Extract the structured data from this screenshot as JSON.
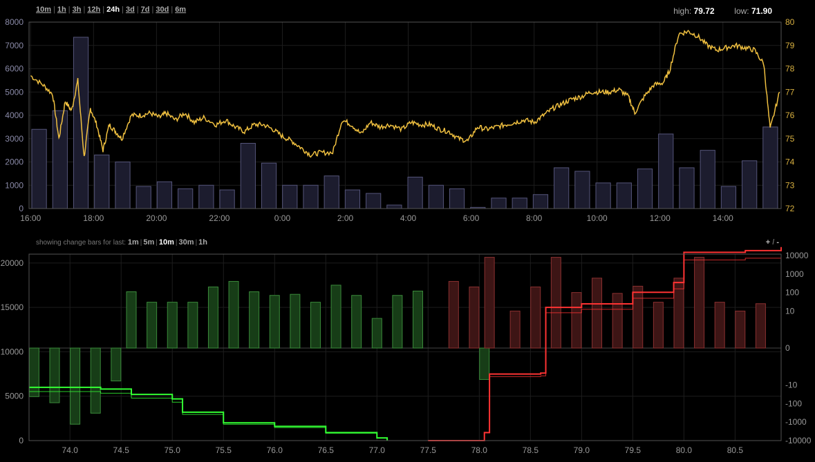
{
  "timeframes": [
    "10m",
    "1h",
    "3h",
    "12h",
    "24h",
    "3d",
    "7d",
    "30d",
    "6m"
  ],
  "timeframe_active": "24h",
  "stats": {
    "high_label": "high:",
    "high": "79.72",
    "low_label": "low:",
    "low": "71.90"
  },
  "changebars": {
    "label": "showing change bars for last:",
    "options": [
      "1m",
      "5m",
      "10m",
      "30m",
      "1h"
    ],
    "active": "10m"
  },
  "zoom": {
    "plus": "+",
    "sep": "/",
    "minus": "-"
  },
  "colors": {
    "price": "#f0c040",
    "volume_fill": "#1c1c2e",
    "volume_stroke": "#55557a",
    "bid_bar": "#173d17",
    "bid_bar_stroke": "#3a8a3a",
    "ask_bar": "#3d1515",
    "ask_bar_stroke": "#8a3030",
    "bid_line": "#33ff33",
    "ask_line": "#ff3333",
    "grid": "#1d1d1d",
    "frame": "#555"
  },
  "chart_data": [
    {
      "type": "bar",
      "name": "price-volume",
      "x_ticks": [
        "16:00",
        "18:00",
        "20:00",
        "22:00",
        "0:00",
        "2:00",
        "4:00",
        "6:00",
        "8:00",
        "10:00",
        "12:00",
        "14:00"
      ],
      "x_tick_hours": [
        16,
        18,
        20,
        22,
        24,
        26,
        28,
        30,
        32,
        34,
        36,
        38
      ],
      "x_range_hours": [
        15.95,
        39.85
      ],
      "y_left_ticks": [
        "0",
        "1000",
        "2000",
        "3000",
        "4000",
        "5000",
        "6000",
        "7000",
        "8000"
      ],
      "y_left_range": [
        0,
        8000
      ],
      "y_right_ticks": [
        "72",
        "73",
        "74",
        "75",
        "76",
        "77",
        "78",
        "79",
        "80"
      ],
      "y_right_range": [
        72,
        80
      ],
      "volume": [
        3400,
        4200,
        7350,
        2300,
        2000,
        950,
        1150,
        850,
        1000,
        800,
        2800,
        1950,
        1000,
        1000,
        1400,
        800,
        650,
        150,
        1350,
        1000,
        850,
        50,
        450,
        450,
        600,
        1750,
        1600,
        1100,
        1100,
        1700,
        3200,
        1750,
        2500,
        950,
        2050,
        3500
      ],
      "price": [
        [
          16.0,
          77.7
        ],
        [
          16.4,
          77.3
        ],
        [
          16.7,
          76.9
        ],
        [
          16.9,
          75.0
        ],
        [
          17.1,
          76.6
        ],
        [
          17.3,
          76.2
        ],
        [
          17.5,
          77.5
        ],
        [
          17.7,
          74.2
        ],
        [
          17.9,
          76.3
        ],
        [
          18.1,
          75.6
        ],
        [
          18.3,
          74.5
        ],
        [
          18.5,
          75.6
        ],
        [
          18.7,
          75.3
        ],
        [
          18.9,
          75.0
        ],
        [
          19.2,
          76.0
        ],
        [
          19.5,
          76.0
        ],
        [
          19.8,
          76.1
        ],
        [
          20.1,
          75.9
        ],
        [
          20.3,
          76.1
        ],
        [
          20.6,
          75.8
        ],
        [
          20.9,
          76.1
        ],
        [
          21.2,
          75.7
        ],
        [
          21.5,
          75.9
        ],
        [
          21.9,
          75.6
        ],
        [
          22.2,
          75.8
        ],
        [
          22.5,
          75.5
        ],
        [
          22.8,
          75.3
        ],
        [
          23.1,
          75.6
        ],
        [
          23.4,
          75.6
        ],
        [
          23.7,
          75.4
        ],
        [
          24.0,
          75.1
        ],
        [
          24.3,
          74.9
        ],
        [
          24.6,
          74.6
        ],
        [
          24.9,
          74.3
        ],
        [
          25.2,
          74.4
        ],
        [
          25.6,
          74.4
        ],
        [
          25.9,
          75.8
        ],
        [
          26.2,
          75.6
        ],
        [
          26.5,
          75.2
        ],
        [
          26.8,
          75.7
        ],
        [
          27.1,
          75.5
        ],
        [
          27.4,
          75.6
        ],
        [
          27.8,
          75.4
        ],
        [
          28.1,
          75.7
        ],
        [
          28.4,
          75.6
        ],
        [
          28.7,
          75.6
        ],
        [
          29.0,
          75.4
        ],
        [
          29.3,
          75.3
        ],
        [
          29.6,
          75.0
        ],
        [
          29.9,
          74.9
        ],
        [
          30.2,
          75.5
        ],
        [
          30.5,
          75.4
        ],
        [
          30.8,
          75.5
        ],
        [
          31.1,
          75.6
        ],
        [
          31.4,
          75.7
        ],
        [
          31.7,
          75.8
        ],
        [
          32.0,
          75.7
        ],
        [
          32.3,
          76.0
        ],
        [
          32.6,
          76.3
        ],
        [
          32.9,
          76.5
        ],
        [
          33.2,
          76.7
        ],
        [
          33.5,
          76.8
        ],
        [
          33.8,
          77.0
        ],
        [
          34.1,
          77.0
        ],
        [
          34.4,
          77.0
        ],
        [
          34.7,
          77.1
        ],
        [
          35.0,
          76.8
        ],
        [
          35.2,
          76.1
        ],
        [
          35.5,
          76.8
        ],
        [
          35.8,
          77.3
        ],
        [
          36.1,
          77.4
        ],
        [
          36.3,
          77.9
        ],
        [
          36.6,
          79.5
        ],
        [
          36.9,
          79.6
        ],
        [
          37.2,
          79.4
        ],
        [
          37.5,
          79.0
        ],
        [
          37.8,
          78.8
        ],
        [
          38.1,
          78.9
        ],
        [
          38.4,
          79.0
        ],
        [
          38.7,
          78.9
        ],
        [
          39.0,
          78.8
        ],
        [
          39.3,
          78.2
        ],
        [
          39.5,
          75.4
        ],
        [
          39.8,
          77.0
        ]
      ]
    },
    {
      "type": "bar",
      "name": "depth-change",
      "x_ticks": [
        "74.0",
        "74.5",
        "75.0",
        "75.5",
        "76.0",
        "76.5",
        "77.0",
        "77.5",
        "78.0",
        "78.5",
        "79.0",
        "79.5",
        "80.0",
        "80.5"
      ],
      "x_tick_values": [
        74.0,
        74.5,
        75.0,
        75.5,
        76.0,
        76.5,
        77.0,
        77.5,
        78.0,
        78.5,
        79.0,
        79.5,
        80.0,
        80.5
      ],
      "x_range": [
        73.6,
        80.95
      ],
      "y_left_ticks": [
        "0",
        "5000",
        "10000",
        "15000",
        "20000"
      ],
      "y_left_range": [
        0,
        21000
      ],
      "y_right_ticks": [
        "10000",
        "1000",
        "100",
        "10",
        "0",
        "-10",
        "-100",
        "-1000",
        "-10000"
      ],
      "change_axis_scale": "symlog",
      "change_bars": [
        [
          73.65,
          -42
        ],
        [
          73.85,
          -90
        ],
        [
          74.05,
          -1300
        ],
        [
          74.25,
          -330
        ],
        [
          74.45,
          -6
        ],
        [
          74.6,
          110
        ],
        [
          74.8,
          30
        ],
        [
          75.0,
          30
        ],
        [
          75.2,
          30
        ],
        [
          75.4,
          200
        ],
        [
          75.6,
          400
        ],
        [
          75.8,
          110
        ],
        [
          76.0,
          70
        ],
        [
          76.2,
          80
        ],
        [
          76.4,
          30
        ],
        [
          76.6,
          250
        ],
        [
          76.8,
          70
        ],
        [
          77.0,
          4
        ],
        [
          77.2,
          70
        ],
        [
          77.4,
          120
        ],
        [
          78.05,
          -5
        ],
        [
          77.75,
          400
        ],
        [
          77.95,
          200
        ],
        [
          78.1,
          8000
        ],
        [
          78.35,
          10
        ],
        [
          78.55,
          200
        ],
        [
          78.75,
          8000
        ],
        [
          78.95,
          100
        ],
        [
          79.15,
          600
        ],
        [
          79.35,
          90
        ],
        [
          79.55,
          220
        ],
        [
          79.75,
          30
        ],
        [
          79.95,
          600
        ],
        [
          80.15,
          8000
        ],
        [
          80.35,
          30
        ],
        [
          80.55,
          10
        ],
        [
          80.75,
          25
        ]
      ],
      "bid_depth": [
        [
          73.6,
          6000
        ],
        [
          74.3,
          5800
        ],
        [
          74.6,
          5200
        ],
        [
          75.0,
          4700
        ],
        [
          75.1,
          3200
        ],
        [
          75.5,
          2000
        ],
        [
          76.0,
          1600
        ],
        [
          76.5,
          900
        ],
        [
          77.0,
          300
        ],
        [
          77.1,
          0
        ]
      ],
      "ask_depth": [
        [
          77.5,
          0
        ],
        [
          78.05,
          900
        ],
        [
          78.1,
          7500
        ],
        [
          78.6,
          7600
        ],
        [
          78.65,
          15000
        ],
        [
          79.0,
          15400
        ],
        [
          79.5,
          16700
        ],
        [
          79.9,
          17800
        ],
        [
          80.0,
          21200
        ],
        [
          80.6,
          21400
        ],
        [
          80.95,
          21800
        ]
      ]
    }
  ]
}
